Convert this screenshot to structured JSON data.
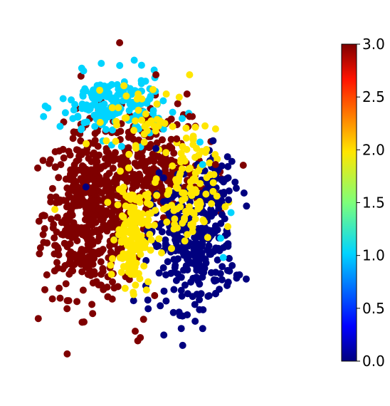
{
  "chart_data": {
    "type": "scatter",
    "title": "",
    "xlabel": "",
    "ylabel": "",
    "axes_visible": false,
    "grid": false,
    "colormap": "jet",
    "color_range": [
      0.0,
      3.0
    ],
    "colorbar": {
      "position": "right",
      "ticks": [
        "0.0",
        "0.5",
        "1.0",
        "1.5",
        "2.0",
        "2.5",
        "3.0"
      ],
      "tick_values": [
        0.0,
        0.5,
        1.0,
        1.5,
        2.0,
        2.5,
        3.0
      ]
    },
    "point_classes": [
      0,
      1,
      2,
      3
    ],
    "class_colors": {
      "0": "#00007f",
      "1": "#00d4ff",
      "2": "#ffe600",
      "3": "#7f0000"
    },
    "xlim": [
      0,
      100
    ],
    "ylim": [
      0,
      100
    ],
    "clusters": [
      {
        "class": 3,
        "region": "left lobe",
        "center": [
          22,
          47
        ],
        "spread": [
          9,
          13
        ],
        "count": 520
      },
      {
        "class": 3,
        "region": "centre band",
        "center": [
          46,
          57
        ],
        "spread": [
          11,
          6
        ],
        "count": 230
      },
      {
        "class": 3,
        "region": "upper middle",
        "center": [
          41,
          72
        ],
        "spread": [
          9,
          5
        ],
        "count": 60
      },
      {
        "class": 1,
        "region": "upper left arc",
        "center": [
          30,
          80
        ],
        "spread": [
          10,
          5
        ],
        "count": 170
      },
      {
        "class": 2,
        "region": "central column",
        "center": [
          38,
          40
        ],
        "spread": [
          3.2,
          8
        ],
        "count": 150
      },
      {
        "class": 2,
        "region": "right centre",
        "center": [
          58,
          53
        ],
        "spread": [
          6,
          10
        ],
        "count": 120
      },
      {
        "class": 2,
        "region": "upper centre",
        "center": [
          40,
          76
        ],
        "spread": [
          6,
          5
        ],
        "count": 40
      },
      {
        "class": 0,
        "region": "lower right lobe",
        "center": [
          61,
          37
        ],
        "spread": [
          8,
          10
        ],
        "count": 300
      },
      {
        "class": 0,
        "region": "right wing",
        "center": [
          70,
          55
        ],
        "spread": [
          4,
          6
        ],
        "count": 60
      }
    ],
    "sparse_points": [
      {
        "x": 33,
        "y": 100,
        "class": 3
      },
      {
        "x": 43,
        "y": 88,
        "class": 1
      },
      {
        "x": 47,
        "y": 90,
        "class": 3
      },
      {
        "x": 59,
        "y": 84,
        "class": 3
      },
      {
        "x": 51,
        "y": 84,
        "class": 2
      },
      {
        "x": 14,
        "y": 59,
        "class": 3
      },
      {
        "x": 8,
        "y": 48,
        "class": 2
      },
      {
        "x": 13,
        "y": 37,
        "class": 3
      },
      {
        "x": 75,
        "y": 51,
        "class": 0
      },
      {
        "x": 76,
        "y": 47,
        "class": 1
      },
      {
        "x": 72,
        "y": 39,
        "class": 1
      },
      {
        "x": 73,
        "y": 33,
        "class": 1
      },
      {
        "x": 39,
        "y": 10,
        "class": 3
      },
      {
        "x": 41,
        "y": 8,
        "class": 3
      },
      {
        "x": 40,
        "y": 7,
        "class": 3
      },
      {
        "x": 44,
        "y": 17,
        "class": 0
      },
      {
        "x": 64,
        "y": 69,
        "class": 1
      },
      {
        "x": 60,
        "y": 77,
        "class": 3
      },
      {
        "x": 65,
        "y": 62,
        "class": 1
      },
      {
        "x": 70,
        "y": 62,
        "class": 3
      },
      {
        "x": 28,
        "y": 66,
        "class": 3
      },
      {
        "x": 60,
        "y": 90,
        "class": 2
      },
      {
        "x": 56,
        "y": 83,
        "class": 2
      },
      {
        "x": 47,
        "y": 67,
        "class": 0
      },
      {
        "x": 55,
        "y": 70,
        "class": 3
      },
      {
        "x": 20,
        "y": 55,
        "class": 0
      }
    ]
  }
}
